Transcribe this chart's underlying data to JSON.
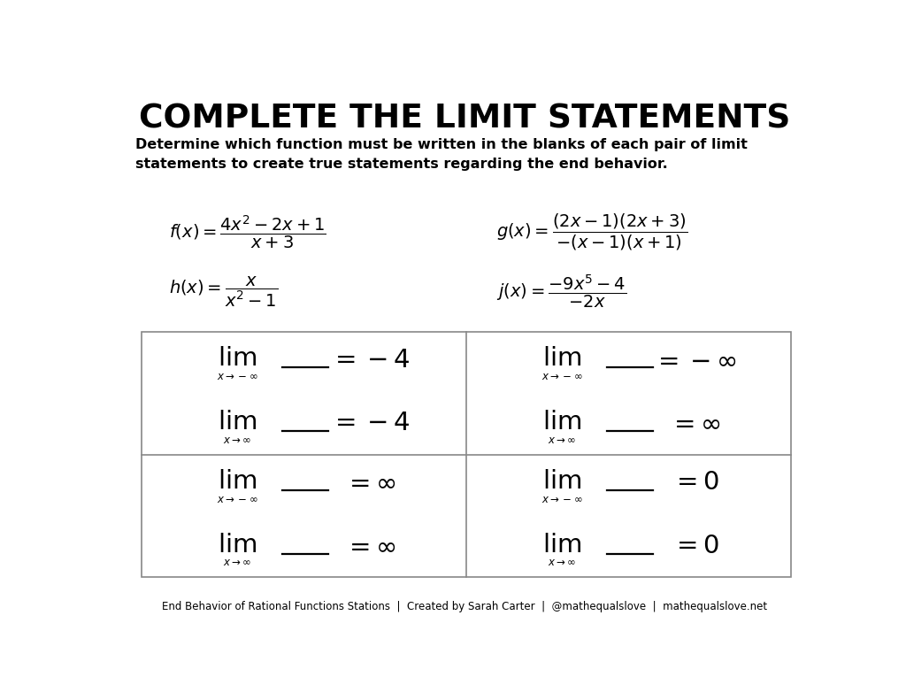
{
  "title": "COMPLETE THE LIMIT STATEMENTS",
  "subtitle": "Determine which function must be written in the blanks of each pair of limit\nstatements to create true statements regarding the end behavior.",
  "footer": "End Behavior of Rational Functions Stations  |  Created by Sarah Carter  |  @mathequalslove  |  mathequalslove.net",
  "bg_color": "#ffffff",
  "text_color": "#000000",
  "grid_color": "#888888",
  "cells": [
    {
      "row": 0,
      "col": 0,
      "line1_sub": "x \\to -\\infty",
      "line1_rhs": "= -4",
      "line2_sub": "x \\to \\infty",
      "line2_rhs": "= -4"
    },
    {
      "row": 0,
      "col": 1,
      "line1_sub": "x \\to -\\infty",
      "line1_rhs": "= -\\infty",
      "line2_sub": "x \\to \\infty",
      "line2_rhs": "= \\infty"
    },
    {
      "row": 1,
      "col": 0,
      "line1_sub": "x \\to -\\infty",
      "line1_rhs": "= \\infty",
      "line2_sub": "x \\to \\infty",
      "line2_rhs": "= \\infty"
    },
    {
      "row": 1,
      "col": 1,
      "line1_sub": "x \\to -\\infty",
      "line1_rhs": "= 0",
      "line2_sub": "x \\to \\infty",
      "line2_rhs": "= 0"
    }
  ]
}
